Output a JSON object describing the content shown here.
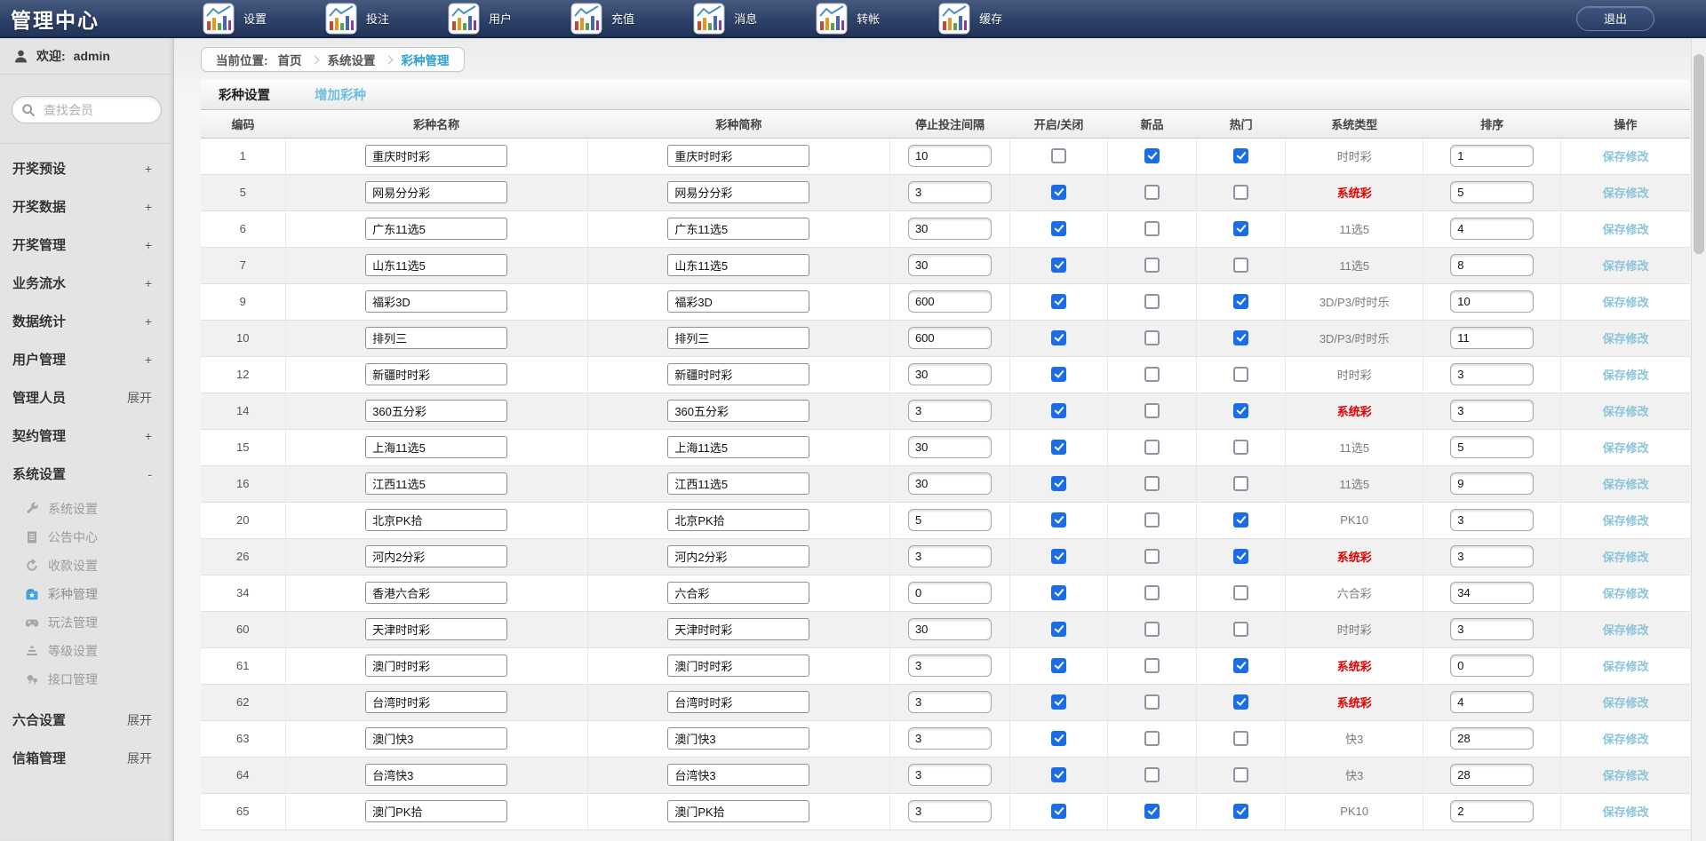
{
  "app": {
    "title": "管理中心",
    "logout_label": "退出"
  },
  "top_nav": {
    "items": [
      {
        "label": "设置"
      },
      {
        "label": "投注"
      },
      {
        "label": "用户"
      },
      {
        "label": "充值"
      },
      {
        "label": "消息"
      },
      {
        "label": "转帐"
      },
      {
        "label": "缓存"
      }
    ]
  },
  "sidebar": {
    "welcome_label": "欢迎:",
    "username": "admin",
    "search_placeholder": "查找会员",
    "menu": [
      {
        "label": "开奖预设",
        "suffix": "+"
      },
      {
        "label": "开奖数据",
        "suffix": "+"
      },
      {
        "label": "开奖管理",
        "suffix": "+"
      },
      {
        "label": "业务流水",
        "suffix": "+"
      },
      {
        "label": "数据统计",
        "suffix": "+"
      },
      {
        "label": "用户管理",
        "suffix": "+"
      },
      {
        "label": "管理人员",
        "suffix": "展开"
      },
      {
        "label": "契约管理",
        "suffix": "+"
      },
      {
        "label": "系统设置",
        "suffix": "-",
        "expanded": true
      }
    ],
    "submenu": [
      {
        "label": "系统设置",
        "icon": "wrench-icon",
        "active": false
      },
      {
        "label": "公告中心",
        "icon": "document-icon",
        "active": false
      },
      {
        "label": "收款设置",
        "icon": "refresh-icon",
        "active": false
      },
      {
        "label": "彩种管理",
        "icon": "lottery-folder-icon",
        "active": true
      },
      {
        "label": "玩法管理",
        "icon": "gamepad-icon",
        "active": false
      },
      {
        "label": "等级设置",
        "icon": "levels-icon",
        "active": false
      },
      {
        "label": "接口管理",
        "icon": "interface-icon",
        "active": false
      }
    ],
    "menu_bottom": [
      {
        "label": "六合设置",
        "suffix": "展开"
      },
      {
        "label": "信箱管理",
        "suffix": "展开"
      }
    ]
  },
  "breadcrumb": {
    "prefix": "当前位置:",
    "items": [
      "首页",
      "系统设置",
      "彩种管理"
    ]
  },
  "tabs": {
    "active": "彩种设置",
    "add_link": "增加彩种"
  },
  "table": {
    "headers": [
      "编码",
      "彩种名称",
      "彩种简称",
      "停止投注间隔",
      "开启/关闭",
      "新品",
      "热门",
      "系统类型",
      "排序",
      "操作"
    ],
    "action_label": "保存修改",
    "rows": [
      {
        "id": "1",
        "name": "重庆时时彩",
        "short_name": "重庆时时彩",
        "stop_interval": "10",
        "open": false,
        "is_new": true,
        "is_hot": true,
        "type": "时时彩",
        "type_red": false,
        "sort": "1"
      },
      {
        "id": "5",
        "name": "网易分分彩",
        "short_name": "网易分分彩",
        "stop_interval": "3",
        "open": true,
        "is_new": false,
        "is_hot": false,
        "type": "系统彩",
        "type_red": true,
        "sort": "5"
      },
      {
        "id": "6",
        "name": "广东11选5",
        "short_name": "广东11选5",
        "stop_interval": "30",
        "open": true,
        "is_new": false,
        "is_hot": true,
        "type": "11选5",
        "type_red": false,
        "sort": "4"
      },
      {
        "id": "7",
        "name": "山东11选5",
        "short_name": "山东11选5",
        "stop_interval": "30",
        "open": true,
        "is_new": false,
        "is_hot": false,
        "type": "11选5",
        "type_red": false,
        "sort": "8"
      },
      {
        "id": "9",
        "name": "福彩3D",
        "short_name": "福彩3D",
        "stop_interval": "600",
        "open": true,
        "is_new": false,
        "is_hot": true,
        "type": "3D/P3/时时乐",
        "type_red": false,
        "sort": "10"
      },
      {
        "id": "10",
        "name": "排列三",
        "short_name": "排列三",
        "stop_interval": "600",
        "open": true,
        "is_new": false,
        "is_hot": true,
        "type": "3D/P3/时时乐",
        "type_red": false,
        "sort": "11"
      },
      {
        "id": "12",
        "name": "新疆时时彩",
        "short_name": "新疆时时彩",
        "stop_interval": "30",
        "open": true,
        "is_new": false,
        "is_hot": false,
        "type": "时时彩",
        "type_red": false,
        "sort": "3"
      },
      {
        "id": "14",
        "name": "360五分彩",
        "short_name": "360五分彩",
        "stop_interval": "3",
        "open": true,
        "is_new": false,
        "is_hot": true,
        "type": "系统彩",
        "type_red": true,
        "sort": "3"
      },
      {
        "id": "15",
        "name": "上海11选5",
        "short_name": "上海11选5",
        "stop_interval": "30",
        "open": true,
        "is_new": false,
        "is_hot": false,
        "type": "11选5",
        "type_red": false,
        "sort": "5"
      },
      {
        "id": "16",
        "name": "江西11选5",
        "short_name": "江西11选5",
        "stop_interval": "30",
        "open": true,
        "is_new": false,
        "is_hot": false,
        "type": "11选5",
        "type_red": false,
        "sort": "9"
      },
      {
        "id": "20",
        "name": "北京PK拾",
        "short_name": "北京PK拾",
        "stop_interval": "5",
        "open": true,
        "is_new": false,
        "is_hot": true,
        "type": "PK10",
        "type_red": false,
        "sort": "3"
      },
      {
        "id": "26",
        "name": "河内2分彩",
        "short_name": "河内2分彩",
        "stop_interval": "3",
        "open": true,
        "is_new": false,
        "is_hot": true,
        "type": "系统彩",
        "type_red": true,
        "sort": "3"
      },
      {
        "id": "34",
        "name": "香港六合彩",
        "short_name": "六合彩",
        "stop_interval": "0",
        "open": true,
        "is_new": false,
        "is_hot": false,
        "type": "六合彩",
        "type_red": false,
        "sort": "34"
      },
      {
        "id": "60",
        "name": "天津时时彩",
        "short_name": "天津时时彩",
        "stop_interval": "30",
        "open": true,
        "is_new": false,
        "is_hot": false,
        "type": "时时彩",
        "type_red": false,
        "sort": "3"
      },
      {
        "id": "61",
        "name": "澳门时时彩",
        "short_name": "澳门时时彩",
        "stop_interval": "3",
        "open": true,
        "is_new": false,
        "is_hot": true,
        "type": "系统彩",
        "type_red": true,
        "sort": "0"
      },
      {
        "id": "62",
        "name": "台湾时时彩",
        "short_name": "台湾时时彩",
        "stop_interval": "3",
        "open": true,
        "is_new": false,
        "is_hot": true,
        "type": "系统彩",
        "type_red": true,
        "sort": "4"
      },
      {
        "id": "63",
        "name": "澳门快3",
        "short_name": "澳门快3",
        "stop_interval": "3",
        "open": true,
        "is_new": false,
        "is_hot": false,
        "type": "快3",
        "type_red": false,
        "sort": "28"
      },
      {
        "id": "64",
        "name": "台湾快3",
        "short_name": "台湾快3",
        "stop_interval": "3",
        "open": true,
        "is_new": false,
        "is_hot": false,
        "type": "快3",
        "type_red": false,
        "sort": "28"
      },
      {
        "id": "65",
        "name": "澳门PK拾",
        "short_name": "澳门PK拾",
        "stop_interval": "3",
        "open": true,
        "is_new": true,
        "is_hot": true,
        "type": "PK10",
        "type_red": false,
        "sort": "2"
      }
    ]
  },
  "colors": {
    "topbar": "#2e4168",
    "checkbox_checked": "#1a6ce8",
    "save_link": "#8bc4da",
    "breadcrumb_active": "#2e9fd4",
    "type_alert_red": "#e00000"
  }
}
